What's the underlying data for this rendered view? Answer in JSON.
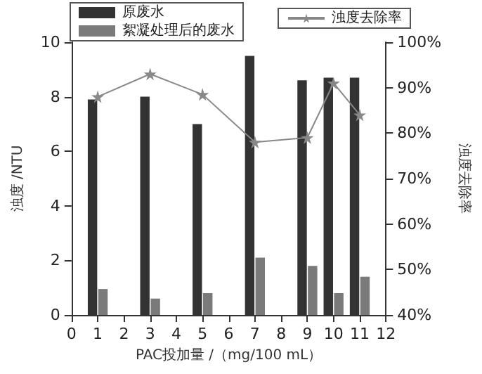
{
  "chart_data": {
    "type": "bar",
    "xlabel": "PAC投加量 /（mg/100 mL）",
    "ylabel": "浊度 /NTU",
    "y2label": "浊度去除率",
    "x": [
      1,
      3,
      5,
      7,
      9,
      10,
      11
    ],
    "series": [
      {
        "name": "原废水",
        "color": "#333333",
        "values": [
          7.9,
          8.0,
          7.0,
          9.5,
          8.6,
          8.7,
          8.7
        ]
      },
      {
        "name": "絮凝处理后的废水",
        "color": "#7a7a7a",
        "values": [
          0.95,
          0.6,
          0.8,
          2.1,
          1.8,
          0.8,
          1.4
        ]
      },
      {
        "name": "浊度去除率",
        "type": "line",
        "axis": "y2",
        "color": "#888888",
        "marker": "star",
        "values": [
          88,
          93,
          88.5,
          78,
          79,
          91,
          84
        ]
      }
    ],
    "xlim": [
      0,
      12
    ],
    "xticks": [
      0,
      1,
      2,
      3,
      4,
      5,
      6,
      7,
      8,
      9,
      10,
      11,
      12
    ],
    "ylim": [
      0,
      10
    ],
    "yticks": [
      0,
      2,
      4,
      6,
      8,
      10
    ],
    "y2lim": [
      40,
      100
    ],
    "y2ticks": [
      {
        "value": 40,
        "label": "40%"
      },
      {
        "value": 50,
        "label": "50%"
      },
      {
        "value": 60,
        "label": "60%"
      },
      {
        "value": 70,
        "label": "70%"
      },
      {
        "value": 80,
        "label": "80%"
      },
      {
        "value": 90,
        "label": "90%"
      },
      {
        "value": 100,
        "label": "100%"
      }
    ],
    "legend": "top",
    "grid": false
  }
}
